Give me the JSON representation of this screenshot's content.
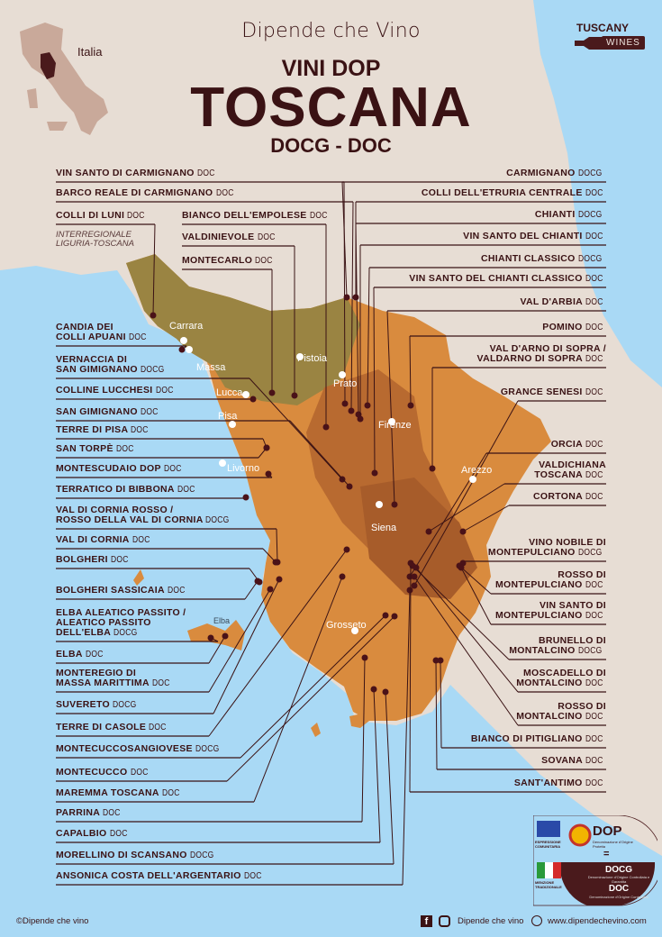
{
  "header": {
    "brand": "Dipende che Vino",
    "subtitle_top": "VINI DOP",
    "title": "TOSCANA",
    "subtitle_bottom": "DOCG - DOC",
    "inset_label": "Italia",
    "badge_top": "TUSCANY",
    "badge_bottom": "WINES"
  },
  "note": [
    "INTERREGIONALE",
    "LIGURIA-TOSCANA"
  ],
  "cities": [
    "Carrara",
    "Massa",
    "Pistoia",
    "Prato",
    "Lucca",
    "Pisa",
    "Firenze",
    "Livorno",
    "Arezzo",
    "Siena",
    "Grosseto",
    "Elba"
  ],
  "left_labels": [
    {
      "lines": [
        "VIN SANTO DI CARMIGNANO"
      ],
      "type": "DOC"
    },
    {
      "lines": [
        "BARCO REALE DI CARMIGNANO"
      ],
      "type": "DOC"
    },
    {
      "lines": [
        "COLLI DI LUNI"
      ],
      "type": "DOC"
    },
    {
      "lines": [
        "BIANCO DELL'EMPOLESE"
      ],
      "type": "DOC"
    },
    {
      "lines": [
        "VALDINIEVOLE"
      ],
      "type": "DOC"
    },
    {
      "lines": [
        "MONTECARLO"
      ],
      "type": "DOC"
    },
    {
      "lines": [
        "CANDIA DEI",
        "COLLI APUANI"
      ],
      "type": "DOC"
    },
    {
      "lines": [
        "VERNACCIA DI",
        "SAN GIMIGNANO"
      ],
      "type": "DOCG"
    },
    {
      "lines": [
        "COLLINE LUCCHESI"
      ],
      "type": "DOC"
    },
    {
      "lines": [
        "SAN GIMIGNANO"
      ],
      "type": "DOC"
    },
    {
      "lines": [
        "TERRE DI PISA"
      ],
      "type": "DOC"
    },
    {
      "lines": [
        "SAN TORPÈ"
      ],
      "type": "DOC"
    },
    {
      "lines": [
        "MONTESCUDAIO DOP"
      ],
      "type": "DOC"
    },
    {
      "lines": [
        "TERRATICO DI BIBBONA"
      ],
      "type": "DOC"
    },
    {
      "lines": [
        "VAL DI CORNIA ROSSO /",
        "ROSSO DELLA VAL DI CORNIA"
      ],
      "type": "DOCG"
    },
    {
      "lines": [
        "VAL DI CORNIA"
      ],
      "type": "DOC"
    },
    {
      "lines": [
        "BOLGHERI"
      ],
      "type": "DOC"
    },
    {
      "lines": [
        "BOLGHERI SASSICAIA"
      ],
      "type": "DOC"
    },
    {
      "lines": [
        "ELBA ALEATICO PASSITO /",
        "ALEATICO PASSITO",
        "DELL'ELBA"
      ],
      "type": "DOCG"
    },
    {
      "lines": [
        "ELBA"
      ],
      "type": "DOC"
    },
    {
      "lines": [
        "MONTEREGIO DI",
        "MASSA MARITTIMA"
      ],
      "type": "DOC"
    },
    {
      "lines": [
        "SUVERETO"
      ],
      "type": "DOCG"
    },
    {
      "lines": [
        "TERRE DI CASOLE"
      ],
      "type": "DOC"
    },
    {
      "lines": [
        "MONTECUCCOSANGIOVESE"
      ],
      "type": "DOCG"
    },
    {
      "lines": [
        "MONTECUCCO"
      ],
      "type": "DOC"
    },
    {
      "lines": [
        "MAREMMA TOSCANA"
      ],
      "type": "DOC"
    },
    {
      "lines": [
        "PARRINA"
      ],
      "type": "DOC"
    },
    {
      "lines": [
        "CAPALBIO"
      ],
      "type": "DOC"
    },
    {
      "lines": [
        "MORELLINO DI SCANSANO"
      ],
      "type": "DOCG"
    },
    {
      "lines": [
        "ANSONICA COSTA DELL'ARGENTARIO"
      ],
      "type": "DOC"
    }
  ],
  "right_labels": [
    {
      "lines": [
        "CARMIGNANO"
      ],
      "type": "DOCG"
    },
    {
      "lines": [
        "COLLI DELL'ETRURIA CENTRALE"
      ],
      "type": "DOC"
    },
    {
      "lines": [
        "CHIANTI"
      ],
      "type": "DOCG"
    },
    {
      "lines": [
        "VIN SANTO DEL CHIANTI"
      ],
      "type": "DOC"
    },
    {
      "lines": [
        "CHIANTI CLASSICO"
      ],
      "type": "DOCG"
    },
    {
      "lines": [
        "VIN SANTO DEL CHIANTI CLASSICO"
      ],
      "type": "DOC"
    },
    {
      "lines": [
        "VAL D'ARBIA"
      ],
      "type": "DOC"
    },
    {
      "lines": [
        "POMINO"
      ],
      "type": "DOC"
    },
    {
      "lines": [
        "VAL D'ARNO DI SOPRA /",
        "VALDARNO DI SOPRA"
      ],
      "type": "DOC"
    },
    {
      "lines": [
        "GRANCE SENESI"
      ],
      "type": "DOC"
    },
    {
      "lines": [
        "ORCIA"
      ],
      "type": "DOC"
    },
    {
      "lines": [
        "VALDICHIANA",
        "TOSCANA"
      ],
      "type": "DOC"
    },
    {
      "lines": [
        "CORTONA"
      ],
      "type": "DOC"
    },
    {
      "lines": [
        "VINO NOBILE DI",
        "MONTEPULCIANO"
      ],
      "type": "DOCG"
    },
    {
      "lines": [
        "ROSSO DI",
        "MONTEPULCIANO"
      ],
      "type": "DOC"
    },
    {
      "lines": [
        "VIN SANTO DI",
        "MONTEPULCIANO"
      ],
      "type": "DOC"
    },
    {
      "lines": [
        "BRUNELLO DI",
        "MONTALCINO"
      ],
      "type": "DOCG"
    },
    {
      "lines": [
        "MOSCADELLO DI",
        "MONTALCINO"
      ],
      "type": "DOC"
    },
    {
      "lines": [
        "ROSSO DI",
        "MONTALCINO"
      ],
      "type": "DOC"
    },
    {
      "lines": [
        "BIANCO DI PITIGLIANO"
      ],
      "type": "DOC"
    },
    {
      "lines": [
        "SOVANA"
      ],
      "type": "DOC"
    },
    {
      "lines": [
        "SANT'ANTIMO"
      ],
      "type": "DOC"
    }
  ],
  "legend": {
    "eu_caption": "ESPRESSIONE COMUNITARIA",
    "it_caption": "MENZIONE TRADIZIONALE",
    "dop": "DOP",
    "dop_desc": "Denominazione d'Origine Protetta",
    "equals": "=",
    "docg": "DOCG",
    "docg_desc": "Denominazione d'Origine Controllata e Garantita",
    "doc": "DOC",
    "doc_desc": "Denominazione d'Origine Controllata"
  },
  "footer": {
    "copyright": "©Dipende che vino",
    "social": "Dipende che vino",
    "website": "www.dipendechevino.com"
  },
  "colors": {
    "ink": "#3a1214",
    "sea": "#a9d9f5",
    "land": "#e7ddd4",
    "olive": "#9a8442",
    "orange": "#d98b3e",
    "brown": "#a75c2a"
  }
}
